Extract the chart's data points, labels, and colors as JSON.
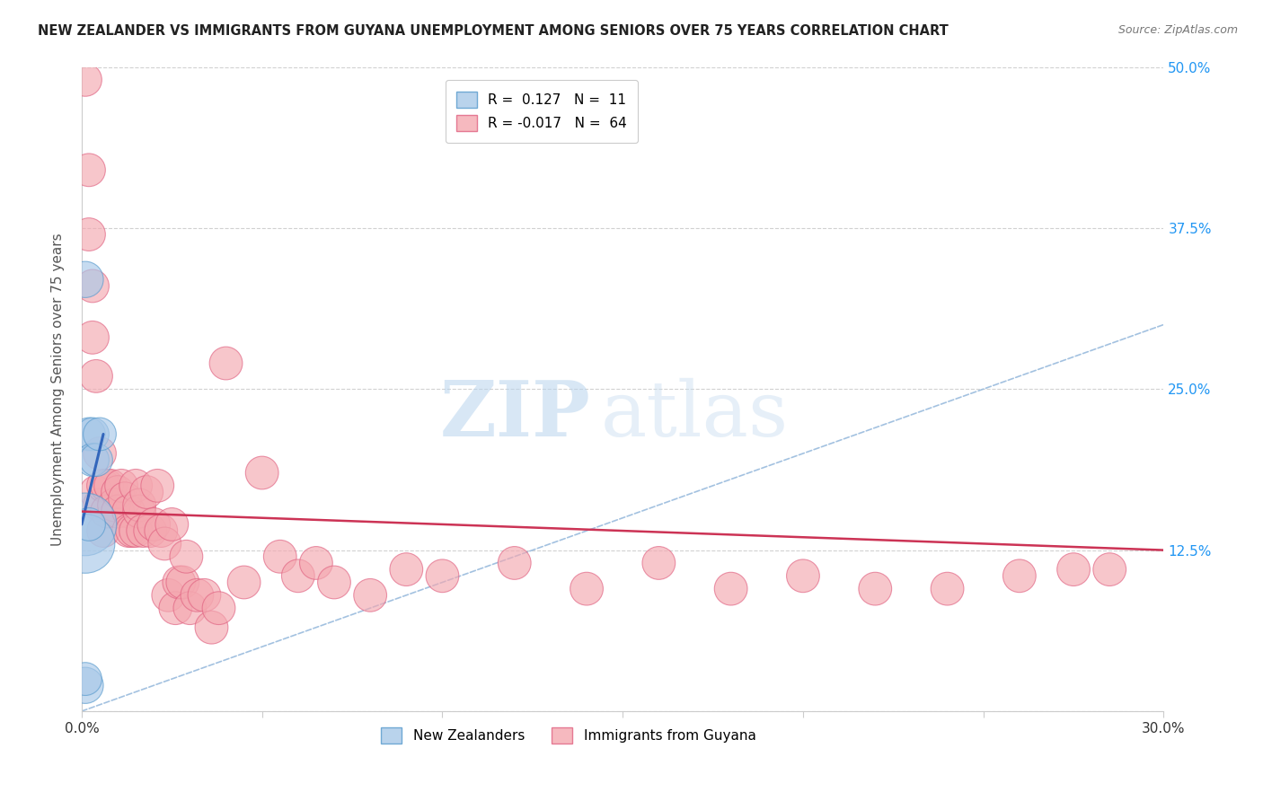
{
  "title": "NEW ZEALANDER VS IMMIGRANTS FROM GUYANA UNEMPLOYMENT AMONG SENIORS OVER 75 YEARS CORRELATION CHART",
  "source": "Source: ZipAtlas.com",
  "xlim": [
    0.0,
    0.3
  ],
  "ylim": [
    0.0,
    0.5
  ],
  "nz_R": 0.127,
  "nz_N": 11,
  "gy_R": -0.017,
  "gy_N": 64,
  "nz_color": "#a8c8e8",
  "gy_color": "#f4a8b0",
  "nz_edge_color": "#5599cc",
  "gy_edge_color": "#e06080",
  "nz_trend_color": "#3366bb",
  "gy_trend_color": "#cc3355",
  "ref_line_color": "#99bbdd",
  "watermark_zip": "ZIP",
  "watermark_atlas": "atlas",
  "ylabel": "Unemployment Among Seniors over 75 years",
  "nz_scatter_x": [
    0.001,
    0.002,
    0.003,
    0.003,
    0.004,
    0.005,
    0.001,
    0.001,
    0.002,
    0.001,
    0.001
  ],
  "nz_scatter_y": [
    0.335,
    0.215,
    0.215,
    0.195,
    0.195,
    0.215,
    0.145,
    0.13,
    0.145,
    0.02,
    0.025
  ],
  "nz_scatter_size": [
    60,
    50,
    50,
    50,
    50,
    50,
    180,
    160,
    50,
    60,
    50
  ],
  "gy_scatter_x": [
    0.001,
    0.002,
    0.002,
    0.003,
    0.003,
    0.004,
    0.004,
    0.005,
    0.005,
    0.006,
    0.006,
    0.007,
    0.007,
    0.008,
    0.009,
    0.01,
    0.01,
    0.011,
    0.012,
    0.013,
    0.013,
    0.014,
    0.015,
    0.015,
    0.016,
    0.016,
    0.017,
    0.018,
    0.019,
    0.02,
    0.021,
    0.022,
    0.023,
    0.024,
    0.025,
    0.026,
    0.027,
    0.028,
    0.029,
    0.03,
    0.032,
    0.034,
    0.036,
    0.038,
    0.04,
    0.045,
    0.05,
    0.055,
    0.06,
    0.065,
    0.07,
    0.08,
    0.09,
    0.1,
    0.12,
    0.14,
    0.16,
    0.18,
    0.2,
    0.22,
    0.24,
    0.26,
    0.275,
    0.285
  ],
  "gy_scatter_y": [
    0.49,
    0.42,
    0.37,
    0.33,
    0.29,
    0.26,
    0.17,
    0.2,
    0.16,
    0.175,
    0.14,
    0.175,
    0.155,
    0.175,
    0.16,
    0.17,
    0.155,
    0.175,
    0.165,
    0.155,
    0.14,
    0.14,
    0.14,
    0.175,
    0.155,
    0.16,
    0.14,
    0.17,
    0.14,
    0.145,
    0.175,
    0.14,
    0.13,
    0.09,
    0.145,
    0.08,
    0.1,
    0.1,
    0.12,
    0.08,
    0.09,
    0.09,
    0.065,
    0.08,
    0.27,
    0.1,
    0.185,
    0.12,
    0.105,
    0.115,
    0.1,
    0.09,
    0.11,
    0.105,
    0.115,
    0.095,
    0.115,
    0.095,
    0.105,
    0.095,
    0.095,
    0.105,
    0.11,
    0.11
  ],
  "gy_scatter_size": [
    50,
    50,
    50,
    50,
    50,
    50,
    50,
    50,
    50,
    50,
    50,
    50,
    50,
    50,
    50,
    50,
    50,
    50,
    50,
    50,
    50,
    50,
    50,
    50,
    50,
    50,
    50,
    50,
    50,
    50,
    50,
    50,
    50,
    50,
    50,
    50,
    50,
    50,
    50,
    50,
    50,
    50,
    50,
    50,
    50,
    50,
    50,
    50,
    50,
    50,
    50,
    50,
    50,
    50,
    50,
    50,
    50,
    50,
    50,
    50,
    50,
    50,
    50,
    50
  ],
  "nz_trend_x": [
    0.0,
    0.006
  ],
  "nz_trend_y": [
    0.145,
    0.215
  ],
  "gy_trend_x": [
    0.0,
    0.3
  ],
  "gy_trend_y": [
    0.155,
    0.125
  ],
  "legend_label_nz": "New Zealanders",
  "legend_label_gy": "Immigrants from Guyana",
  "legend_R_nz": "R =  0.127   N =  11",
  "legend_R_gy": "R = -0.017   N =  64"
}
